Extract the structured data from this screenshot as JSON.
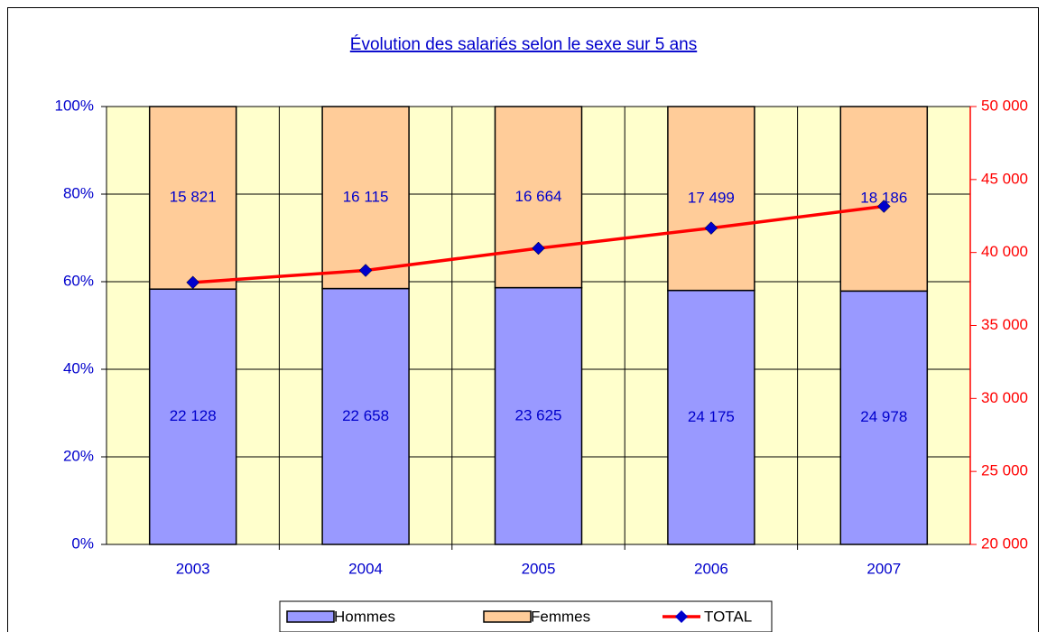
{
  "chart_data": {
    "type": "bar",
    "stacking": "percent",
    "title": "Évolution des salariés selon le sexe sur 5 ans",
    "categories": [
      "2003",
      "2004",
      "2005",
      "2006",
      "2007"
    ],
    "series": [
      {
        "name": "Hommes",
        "color": "#9999ff",
        "values": [
          22128,
          22658,
          23625,
          24175,
          24978
        ],
        "value_labels": [
          "22 128",
          "22 658",
          "23 625",
          "24 175",
          "24 978"
        ]
      },
      {
        "name": "Femmes",
        "color": "#ffcc99",
        "values": [
          15821,
          16115,
          16664,
          17499,
          18186
        ],
        "value_labels": [
          "15 821",
          "16 115",
          "16 664",
          "17 499",
          "18 186"
        ]
      },
      {
        "name": "TOTAL",
        "type": "line",
        "axis": "y2",
        "color": "#ff0000",
        "marker_color": "#0000cc",
        "values": [
          37949,
          38773,
          40289,
          41674,
          43164
        ]
      }
    ],
    "ylim": [
      0,
      100
    ],
    "yticks": [
      {
        "value": 0,
        "label": "0%"
      },
      {
        "value": 20,
        "label": "20%"
      },
      {
        "value": 40,
        "label": "40%"
      },
      {
        "value": 60,
        "label": "60%"
      },
      {
        "value": 80,
        "label": "80%"
      },
      {
        "value": 100,
        "label": "100%"
      }
    ],
    "y2lim": [
      20000,
      50000
    ],
    "y2ticks": [
      {
        "value": 20000,
        "label": "20 000"
      },
      {
        "value": 25000,
        "label": "25 000"
      },
      {
        "value": 30000,
        "label": "30 000"
      },
      {
        "value": 35000,
        "label": "35 000"
      },
      {
        "value": 40000,
        "label": "40 000"
      },
      {
        "value": 45000,
        "label": "45 000"
      },
      {
        "value": 50000,
        "label": "50 000"
      }
    ],
    "grid": true,
    "legend": "bottom",
    "background": "#ffffcc"
  }
}
